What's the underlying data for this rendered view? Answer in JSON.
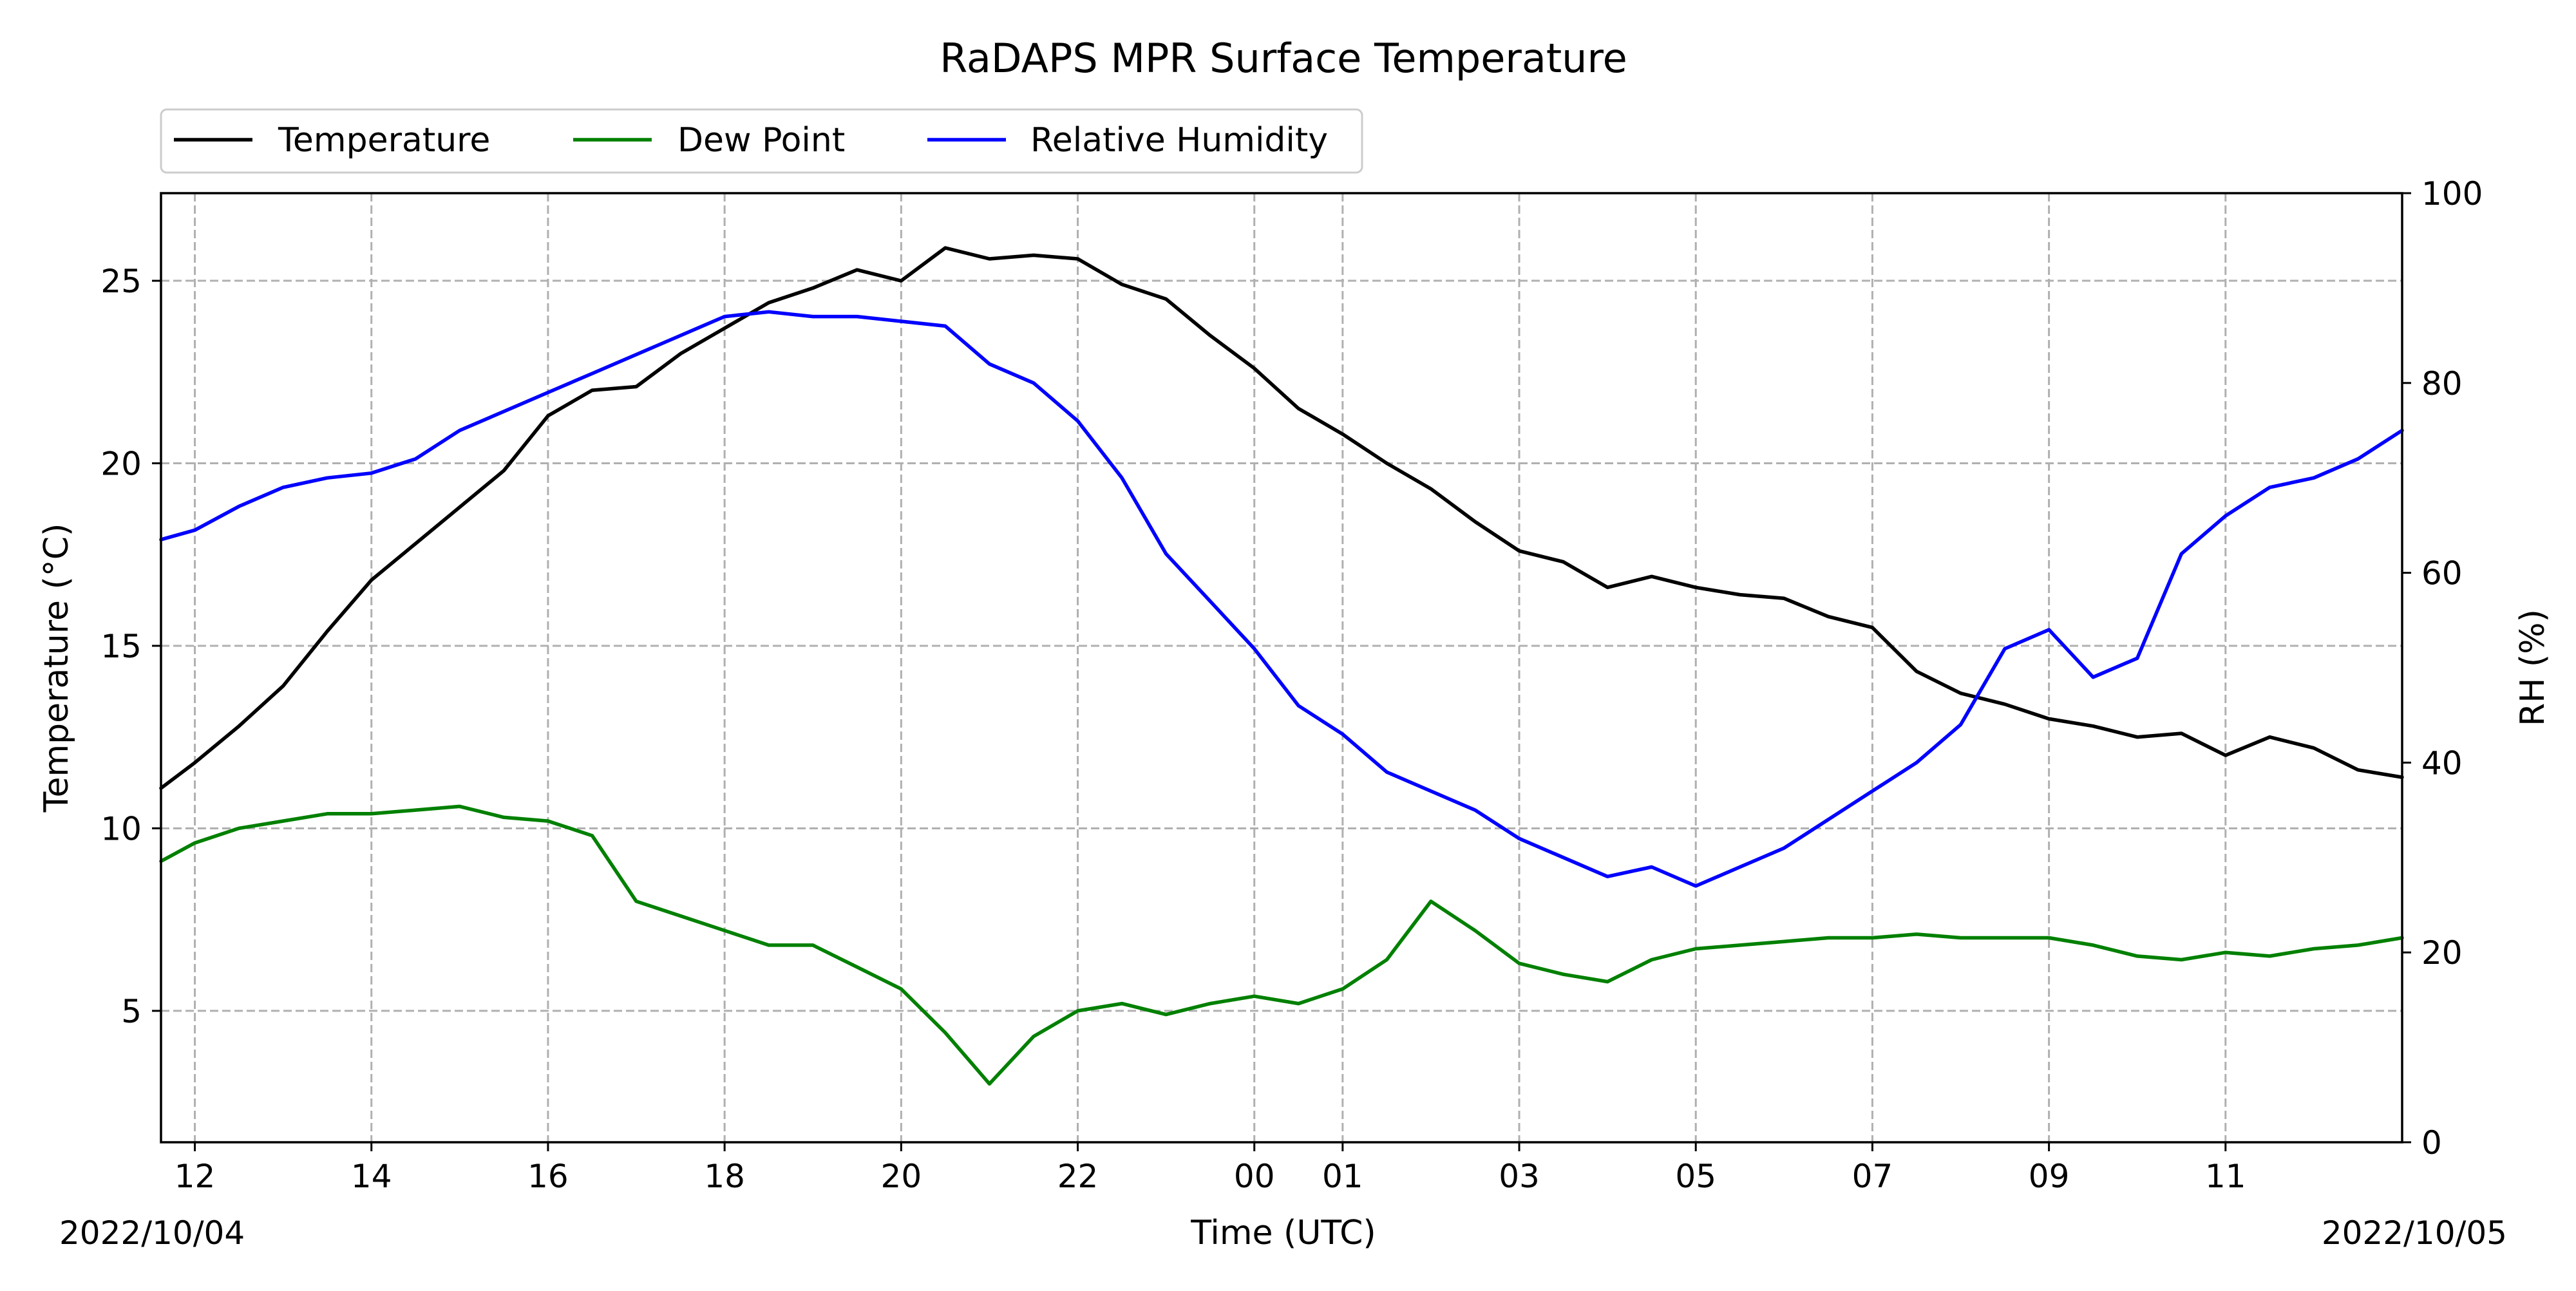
{
  "chart_data": {
    "type": "line",
    "title": "RaDAPS MPR Surface Temperature",
    "xlabel": "Time (UTC)",
    "ylabel_left": "Temperature ($^\\circ$C)",
    "ylabel_left_display": "Temperature (°C)",
    "ylabel_right": "RH (%)",
    "start_date_label": "2022/10/04",
    "end_date_label": "2022/10/05",
    "x_ticks": [
      "12",
      "14",
      "16",
      "18",
      "20",
      "22",
      "00",
      "01",
      "03",
      "05",
      "07",
      "09",
      "11"
    ],
    "x_tick_times": [
      "2022-10-04T12:00Z",
      "2022-10-04T14:00Z",
      "2022-10-04T16:00Z",
      "2022-10-04T18:00Z",
      "2022-10-04T20:00Z",
      "2022-10-04T22:00Z",
      "2022-10-05T00:00Z",
      "2022-10-05T01:00Z",
      "2022-10-05T03:00Z",
      "2022-10-05T05:00Z",
      "2022-10-05T07:00Z",
      "2022-10-05T09:00Z",
      "2022-10-05T11:00Z"
    ],
    "xlim": [
      "2022-10-04T11:37Z",
      "2022-10-05T13:00Z"
    ],
    "y_left_ticks": [
      5,
      10,
      15,
      20,
      25
    ],
    "ylim_left": [
      1.4,
      27.4
    ],
    "y_right_ticks": [
      0,
      20,
      40,
      60,
      80,
      100
    ],
    "ylim_right": [
      0,
      100
    ],
    "grid": true,
    "legend_position": "top-left, above plot",
    "series": [
      {
        "name": "Temperature",
        "axis": "left",
        "color": "#000000",
        "x": [
          "2022-10-04T11:37Z",
          "2022-10-04T12:00Z",
          "2022-10-04T12:30Z",
          "2022-10-04T13:00Z",
          "2022-10-04T13:30Z",
          "2022-10-04T14:00Z",
          "2022-10-04T14:30Z",
          "2022-10-04T15:00Z",
          "2022-10-04T15:30Z",
          "2022-10-04T16:00Z",
          "2022-10-04T16:30Z",
          "2022-10-04T17:00Z",
          "2022-10-04T17:30Z",
          "2022-10-04T18:00Z",
          "2022-10-04T18:30Z",
          "2022-10-04T19:00Z",
          "2022-10-04T19:30Z",
          "2022-10-04T20:00Z",
          "2022-10-04T20:30Z",
          "2022-10-04T21:00Z",
          "2022-10-04T21:30Z",
          "2022-10-04T22:00Z",
          "2022-10-04T22:30Z",
          "2022-10-04T23:00Z",
          "2022-10-04T23:30Z",
          "2022-10-05T00:00Z",
          "2022-10-05T00:30Z",
          "2022-10-05T01:00Z",
          "2022-10-05T01:30Z",
          "2022-10-05T02:00Z",
          "2022-10-05T02:30Z",
          "2022-10-05T03:00Z",
          "2022-10-05T03:30Z",
          "2022-10-05T04:00Z",
          "2022-10-05T04:30Z",
          "2022-10-05T05:00Z",
          "2022-10-05T05:30Z",
          "2022-10-05T06:00Z",
          "2022-10-05T06:30Z",
          "2022-10-05T07:00Z",
          "2022-10-05T07:30Z",
          "2022-10-05T08:00Z",
          "2022-10-05T08:30Z",
          "2022-10-05T09:00Z",
          "2022-10-05T09:30Z",
          "2022-10-05T10:00Z",
          "2022-10-05T10:30Z",
          "2022-10-05T11:00Z",
          "2022-10-05T11:30Z",
          "2022-10-05T12:00Z",
          "2022-10-05T12:30Z",
          "2022-10-05T13:00Z"
        ],
        "y": [
          11.1,
          11.8,
          12.8,
          13.9,
          15.4,
          16.8,
          17.8,
          18.8,
          19.8,
          21.3,
          22.0,
          22.1,
          23.0,
          23.7,
          24.4,
          24.8,
          25.3,
          25.0,
          25.9,
          25.6,
          25.7,
          25.6,
          24.9,
          24.5,
          23.5,
          22.6,
          21.5,
          20.8,
          20.0,
          19.3,
          18.4,
          17.6,
          17.3,
          16.6,
          16.9,
          16.6,
          16.4,
          16.3,
          15.8,
          15.5,
          14.3,
          13.7,
          13.4,
          13.0,
          12.8,
          12.5,
          12.6,
          12.0,
          12.5,
          12.2,
          11.6,
          11.4
        ]
      },
      {
        "name": "Dew Point",
        "axis": "left",
        "color": "#008000",
        "x": [
          "2022-10-04T11:37Z",
          "2022-10-04T12:00Z",
          "2022-10-04T12:30Z",
          "2022-10-04T13:00Z",
          "2022-10-04T13:30Z",
          "2022-10-04T14:00Z",
          "2022-10-04T14:30Z",
          "2022-10-04T15:00Z",
          "2022-10-04T15:30Z",
          "2022-10-04T16:00Z",
          "2022-10-04T16:30Z",
          "2022-10-04T17:00Z",
          "2022-10-04T17:30Z",
          "2022-10-04T18:00Z",
          "2022-10-04T18:30Z",
          "2022-10-04T19:00Z",
          "2022-10-04T19:30Z",
          "2022-10-04T20:00Z",
          "2022-10-04T20:30Z",
          "2022-10-04T21:00Z",
          "2022-10-04T21:30Z",
          "2022-10-04T22:00Z",
          "2022-10-04T22:30Z",
          "2022-10-04T23:00Z",
          "2022-10-04T23:30Z",
          "2022-10-05T00:00Z",
          "2022-10-05T00:30Z",
          "2022-10-05T01:00Z",
          "2022-10-05T01:30Z",
          "2022-10-05T02:00Z",
          "2022-10-05T02:30Z",
          "2022-10-05T03:00Z",
          "2022-10-05T03:30Z",
          "2022-10-05T04:00Z",
          "2022-10-05T04:30Z",
          "2022-10-05T05:00Z",
          "2022-10-05T05:30Z",
          "2022-10-05T06:00Z",
          "2022-10-05T06:30Z",
          "2022-10-05T07:00Z",
          "2022-10-05T07:30Z",
          "2022-10-05T08:00Z",
          "2022-10-05T08:30Z",
          "2022-10-05T09:00Z",
          "2022-10-05T09:30Z",
          "2022-10-05T10:00Z",
          "2022-10-05T10:30Z",
          "2022-10-05T11:00Z",
          "2022-10-05T11:30Z",
          "2022-10-05T12:00Z",
          "2022-10-05T12:30Z",
          "2022-10-05T13:00Z"
        ],
        "y": [
          9.1,
          9.6,
          10.0,
          10.2,
          10.4,
          10.4,
          10.5,
          10.6,
          10.3,
          10.2,
          9.8,
          8.0,
          7.6,
          7.2,
          6.8,
          6.8,
          6.2,
          5.6,
          4.4,
          3.0,
          4.3,
          5.0,
          5.2,
          4.9,
          5.2,
          5.4,
          5.2,
          5.6,
          6.4,
          8.0,
          7.2,
          6.3,
          6.0,
          5.8,
          6.4,
          6.7,
          6.8,
          6.9,
          7.0,
          7.0,
          7.1,
          7.0,
          7.0,
          7.0,
          6.8,
          6.5,
          6.4,
          6.6,
          6.5,
          6.7,
          6.8,
          7.0
        ]
      },
      {
        "name": "Relative Humidity",
        "axis": "right",
        "color": "#0000ff",
        "x": [
          "2022-10-04T11:37Z",
          "2022-10-04T12:00Z",
          "2022-10-04T12:30Z",
          "2022-10-04T13:00Z",
          "2022-10-04T13:30Z",
          "2022-10-04T14:00Z",
          "2022-10-04T14:30Z",
          "2022-10-04T15:00Z",
          "2022-10-04T15:30Z",
          "2022-10-04T16:00Z",
          "2022-10-04T16:30Z",
          "2022-10-04T17:00Z",
          "2022-10-04T17:30Z",
          "2022-10-04T18:00Z",
          "2022-10-04T18:30Z",
          "2022-10-04T19:00Z",
          "2022-10-04T19:30Z",
          "2022-10-04T20:00Z",
          "2022-10-04T20:30Z",
          "2022-10-04T21:00Z",
          "2022-10-04T21:30Z",
          "2022-10-04T22:00Z",
          "2022-10-04T22:30Z",
          "2022-10-04T23:00Z",
          "2022-10-04T23:30Z",
          "2022-10-05T00:00Z",
          "2022-10-05T00:30Z",
          "2022-10-05T01:00Z",
          "2022-10-05T01:30Z",
          "2022-10-05T02:00Z",
          "2022-10-05T02:30Z",
          "2022-10-05T03:00Z",
          "2022-10-05T03:30Z",
          "2022-10-05T04:00Z",
          "2022-10-05T04:30Z",
          "2022-10-05T05:00Z",
          "2022-10-05T05:30Z",
          "2022-10-05T06:00Z",
          "2022-10-05T06:30Z",
          "2022-10-05T07:00Z",
          "2022-10-05T07:30Z",
          "2022-10-05T08:00Z",
          "2022-10-05T08:30Z",
          "2022-10-05T09:00Z",
          "2022-10-05T09:30Z",
          "2022-10-05T10:00Z",
          "2022-10-05T10:30Z",
          "2022-10-05T11:00Z",
          "2022-10-05T11:30Z",
          "2022-10-05T12:00Z",
          "2022-10-05T12:30Z",
          "2022-10-05T13:00Z"
        ],
        "y": [
          63.5,
          64.5,
          67,
          69,
          70,
          70.5,
          72,
          75,
          77,
          79,
          81,
          83,
          85,
          87,
          87.5,
          87,
          87,
          86.5,
          86,
          82,
          80,
          76,
          70,
          62,
          57,
          52,
          46,
          43,
          39,
          37,
          35,
          32,
          30,
          28,
          29,
          27,
          29,
          31,
          34,
          37,
          40,
          44,
          52,
          54,
          49,
          51,
          62,
          66,
          69,
          70,
          72,
          75
        ]
      }
    ]
  }
}
